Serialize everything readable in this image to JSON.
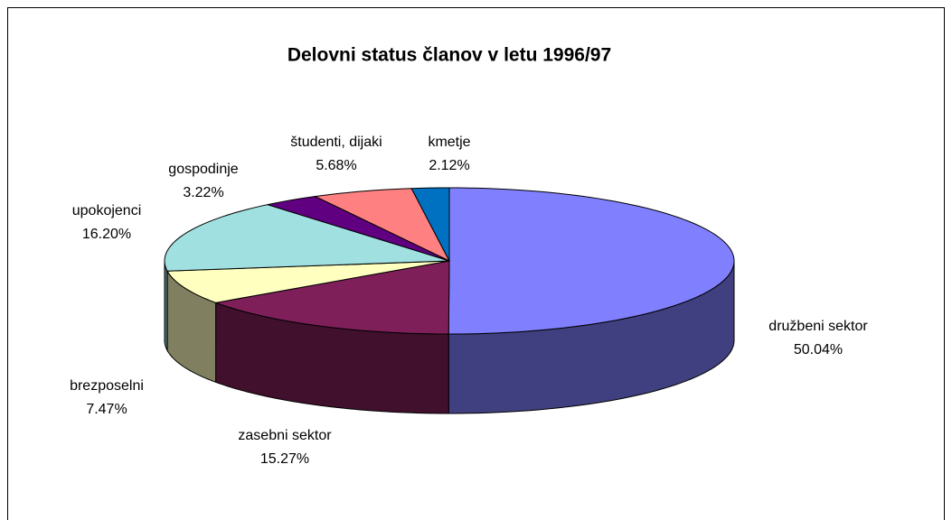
{
  "chart_data": {
    "type": "pie",
    "title": "Delovni status članov v letu 1996/97",
    "categories": [
      "družbeni sektor",
      "zasebni sektor",
      "brezposelni",
      "upokojenci",
      "gospodinje",
      "študenti, dijaki",
      "kmetje"
    ],
    "values": [
      50.04,
      15.27,
      7.47,
      16.2,
      3.22,
      5.68,
      2.12
    ],
    "value_labels": [
      "50.04%",
      "15.27%",
      "7.47%",
      "16.20%",
      "3.22%",
      "5.68%",
      "2.12%"
    ],
    "colors": [
      "#8080ff",
      "#7f1f5a",
      "#ffffc0",
      "#a0e0e0",
      "#600080",
      "#ff8080",
      "#0070c0"
    ]
  }
}
